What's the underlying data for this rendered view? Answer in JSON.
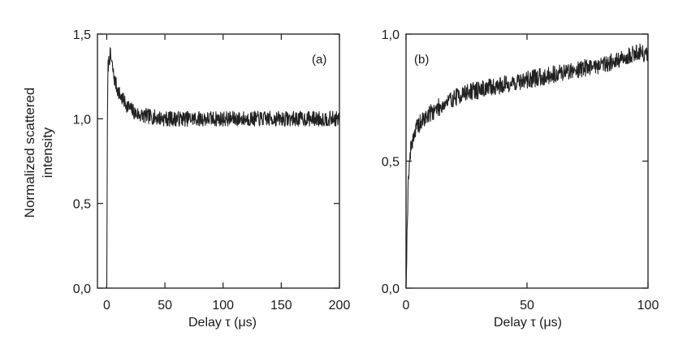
{
  "chart_data": [
    {
      "id": "a",
      "type": "line",
      "title": "",
      "panel_label": "(a)",
      "ylabel": [
        "Normalized scattered",
        "intensity"
      ],
      "xlabel": "Delay τ (μs)",
      "xlim": [
        -8,
        200
      ],
      "ylim": [
        0,
        1.5
      ],
      "xticks": [
        0,
        50,
        100,
        150,
        200
      ],
      "xtick_labels": [
        "0",
        "50",
        "100",
        "150",
        "200"
      ],
      "yticks": [
        0,
        0.5,
        1.0,
        1.5
      ],
      "ytick_labels": [
        "0,0",
        "0,5",
        "1,0",
        "1,5"
      ],
      "grid": false,
      "noise_amplitude": 0.045,
      "series": [
        {
          "x": [
            -6,
            -1,
            0,
            0.5,
            1,
            2,
            3,
            4,
            5,
            6,
            8,
            10,
            12,
            15,
            20,
            25,
            30,
            40,
            50,
            70,
            100,
            150,
            200
          ],
          "y": [
            0.0,
            0.0,
            0.0,
            0.9,
            1.3,
            1.35,
            1.38,
            1.34,
            1.3,
            1.25,
            1.2,
            1.16,
            1.13,
            1.1,
            1.06,
            1.03,
            1.02,
            1.01,
            1.0,
            1.0,
            1.0,
            1.0,
            1.0
          ]
        }
      ]
    },
    {
      "id": "b",
      "type": "line",
      "title": "",
      "panel_label": "(b)",
      "ylabel": "",
      "xlabel": "Delay τ (μs)",
      "xlim": [
        0,
        100
      ],
      "ylim": [
        0,
        1.0
      ],
      "xticks": [
        0,
        50,
        100
      ],
      "xtick_labels": [
        "0",
        "50",
        "100"
      ],
      "yticks": [
        0,
        0.5,
        1.0
      ],
      "ytick_labels": [
        "0,0",
        "0,5",
        "1,0"
      ],
      "grid": false,
      "noise_amplitude": 0.035,
      "series": [
        {
          "x": [
            0,
            0.5,
            1,
            2,
            3,
            5,
            8,
            10,
            15,
            20,
            25,
            30,
            40,
            50,
            60,
            70,
            80,
            90,
            95,
            100
          ],
          "y": [
            0.0,
            0.25,
            0.45,
            0.55,
            0.6,
            0.64,
            0.67,
            0.69,
            0.72,
            0.75,
            0.77,
            0.78,
            0.8,
            0.82,
            0.84,
            0.86,
            0.88,
            0.9,
            0.93,
            0.92
          ]
        }
      ]
    }
  ]
}
